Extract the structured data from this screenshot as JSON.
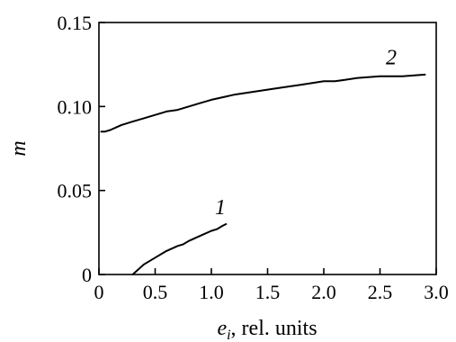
{
  "chart_data": {
    "type": "line",
    "xlabel_main": "e",
    "xlabel_sub": "i",
    "xlabel_rest": ", rel. units",
    "ylabel": "m",
    "xlim": [
      0,
      3.0
    ],
    "ylim": [
      0,
      0.15
    ],
    "grid": false,
    "x_ticks": [
      {
        "value": 0,
        "label": "0"
      },
      {
        "value": 0.5,
        "label": "0.5"
      },
      {
        "value": 1.0,
        "label": "1.0"
      },
      {
        "value": 1.5,
        "label": "1.5"
      },
      {
        "value": 2.0,
        "label": "2.0"
      },
      {
        "value": 2.5,
        "label": "2.5"
      },
      {
        "value": 3.0,
        "label": "3.0"
      }
    ],
    "y_ticks": [
      {
        "value": 0,
        "label": "0"
      },
      {
        "value": 0.05,
        "label": "0.05"
      },
      {
        "value": 0.1,
        "label": "0.10"
      },
      {
        "value": 0.15,
        "label": "0.15"
      }
    ],
    "series": [
      {
        "name": "1",
        "x": [
          0.3,
          0.35,
          0.4,
          0.5,
          0.6,
          0.7,
          0.75,
          0.8,
          0.9,
          1.0,
          1.05,
          1.1,
          1.13
        ],
        "y": [
          0.0,
          0.003,
          0.006,
          0.01,
          0.014,
          0.017,
          0.018,
          0.02,
          0.023,
          0.026,
          0.027,
          0.029,
          0.03
        ],
        "label_at": [
          1.08,
          0.036
        ]
      },
      {
        "name": "2",
        "x": [
          0.02,
          0.05,
          0.1,
          0.2,
          0.3,
          0.4,
          0.5,
          0.6,
          0.7,
          0.8,
          0.9,
          1.0,
          1.2,
          1.4,
          1.6,
          1.8,
          2.0,
          2.1,
          2.2,
          2.3,
          2.5,
          2.7,
          2.9
        ],
        "y": [
          0.085,
          0.085,
          0.086,
          0.089,
          0.091,
          0.093,
          0.095,
          0.097,
          0.098,
          0.1,
          0.102,
          0.104,
          0.107,
          0.109,
          0.111,
          0.113,
          0.115,
          0.115,
          0.116,
          0.117,
          0.118,
          0.118,
          0.119
        ],
        "label_at": [
          2.6,
          0.125
        ]
      }
    ]
  }
}
